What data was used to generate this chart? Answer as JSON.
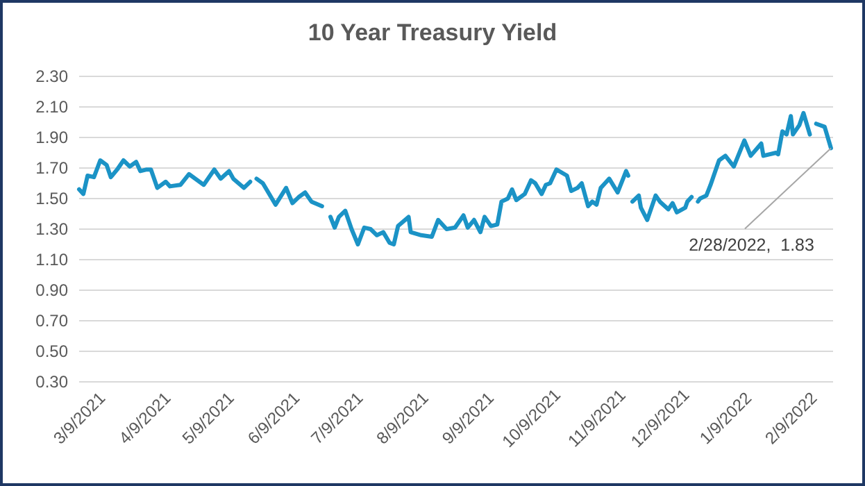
{
  "chart_data": {
    "type": "line",
    "title": "10 Year Treasury Yield",
    "x": [
      "2021-03-09",
      "2021-03-11",
      "2021-03-13",
      "2021-03-16",
      "2021-03-19",
      "2021-03-22",
      "2021-03-24",
      "2021-03-27",
      "2021-03-30",
      "2021-04-02",
      "2021-04-05",
      "2021-04-07",
      "2021-04-10",
      "2021-04-12",
      "2021-04-15",
      "2021-04-19",
      "2021-04-21",
      "2021-04-26",
      "2021-04-30",
      "2021-05-07",
      "2021-05-12",
      "2021-05-15",
      "2021-05-19",
      "2021-05-21",
      "2021-05-26",
      "2021-05-29",
      "2021-05-31",
      "2021-06-01",
      "2021-06-04",
      "2021-06-10",
      "2021-06-15",
      "2021-06-18",
      "2021-06-21",
      "2021-06-24",
      "2021-06-27",
      "2021-07-02",
      "2021-07-04",
      "2021-07-06",
      "2021-07-08",
      "2021-07-10",
      "2021-07-13",
      "2021-07-16",
      "2021-07-19",
      "2021-07-22",
      "2021-07-25",
      "2021-07-28",
      "2021-07-31",
      "2021-08-03",
      "2021-08-05",
      "2021-08-07",
      "2021-08-12",
      "2021-08-13",
      "2021-08-18",
      "2021-08-23",
      "2021-08-26",
      "2021-08-30",
      "2021-09-03",
      "2021-09-07",
      "2021-09-09",
      "2021-09-12",
      "2021-09-15",
      "2021-09-17",
      "2021-09-20",
      "2021-09-23",
      "2021-09-25",
      "2021-09-28",
      "2021-09-30",
      "2021-10-02",
      "2021-10-06",
      "2021-10-09",
      "2021-10-11",
      "2021-10-14",
      "2021-10-16",
      "2021-10-18",
      "2021-10-21",
      "2021-10-26",
      "2021-10-28",
      "2021-10-31",
      "2021-11-02",
      "2021-11-05",
      "2021-11-07",
      "2021-11-09",
      "2021-11-11",
      "2021-11-13",
      "2021-11-15",
      "2021-11-19",
      "2021-11-23",
      "2021-11-24",
      "2021-11-25",
      "2021-11-26",
      "2021-11-29",
      "2021-11-30",
      "2021-12-03",
      "2021-12-07",
      "2021-12-09",
      "2021-12-13",
      "2021-12-15",
      "2021-12-17",
      "2021-12-21",
      "2021-12-22",
      "2021-12-24",
      "2021-12-26",
      "2021-12-27",
      "2021-12-28",
      "2021-12-31",
      "2022-01-02",
      "2022-01-06",
      "2022-01-09",
      "2022-01-13",
      "2022-01-18",
      "2022-01-21",
      "2022-01-26",
      "2022-01-27",
      "2022-02-02",
      "2022-02-03",
      "2022-02-05",
      "2022-02-07",
      "2022-02-09",
      "2022-02-10",
      "2022-02-13",
      "2022-02-15",
      "2022-02-18",
      "2022-02-19",
      "2022-02-21",
      "2022-02-25",
      "2022-02-28"
    ],
    "series": [
      {
        "color": "#1b93c6",
        "values": [
          1.56,
          1.53,
          1.65,
          1.64,
          1.75,
          1.72,
          1.64,
          1.69,
          1.75,
          1.71,
          1.74,
          1.68,
          1.69,
          1.69,
          1.57,
          1.61,
          1.58,
          1.59,
          1.66,
          1.59,
          1.69,
          1.63,
          1.68,
          1.63,
          1.57,
          1.61,
          null,
          1.63,
          1.6,
          1.46,
          1.57,
          1.47,
          1.51,
          1.54,
          1.48,
          1.45,
          null,
          1.38,
          1.31,
          1.38,
          1.42,
          1.3,
          1.2,
          1.31,
          1.3,
          1.26,
          1.28,
          1.21,
          1.2,
          1.32,
          1.38,
          1.28,
          1.26,
          1.25,
          1.36,
          1.3,
          1.31,
          1.39,
          1.31,
          1.36,
          1.28,
          1.38,
          1.32,
          1.33,
          1.48,
          1.5,
          1.56,
          1.49,
          1.53,
          1.62,
          1.6,
          1.53,
          1.59,
          1.6,
          1.69,
          1.65,
          1.55,
          1.57,
          1.6,
          1.45,
          1.48,
          1.46,
          1.57,
          1.6,
          1.63,
          1.54,
          1.68,
          1.65,
          null,
          1.48,
          1.52,
          1.44,
          1.36,
          1.52,
          1.48,
          1.43,
          1.47,
          1.41,
          1.44,
          1.48,
          1.51,
          null,
          1.48,
          1.5,
          1.52,
          1.59,
          1.75,
          1.78,
          1.71,
          1.88,
          1.78,
          1.86,
          1.78,
          1.8,
          1.79,
          1.94,
          1.92,
          2.04,
          1.92,
          1.98,
          2.06,
          1.92,
          null,
          1.99,
          1.97,
          1.83
        ]
      }
    ],
    "xlim": [
      "2021-03-09",
      "2022-03-01"
    ],
    "xticks": [
      {
        "value": "2021-03-09",
        "label": "3/9/2021"
      },
      {
        "value": "2021-04-09",
        "label": "4/9/2021"
      },
      {
        "value": "2021-05-09",
        "label": "5/9/2021"
      },
      {
        "value": "2021-06-09",
        "label": "6/9/2021"
      },
      {
        "value": "2021-07-09",
        "label": "7/9/2021"
      },
      {
        "value": "2021-08-09",
        "label": "8/9/2021"
      },
      {
        "value": "2021-09-09",
        "label": "9/9/2021"
      },
      {
        "value": "2021-10-09",
        "label": "10/9/2021"
      },
      {
        "value": "2021-11-09",
        "label": "11/9/2021"
      },
      {
        "value": "2021-12-09",
        "label": "12/9/2021"
      },
      {
        "value": "2022-01-09",
        "label": "1/9/2022"
      },
      {
        "value": "2022-02-09",
        "label": "2/9/2022"
      }
    ],
    "ylim": [
      0.3,
      2.3
    ],
    "yticks": [
      {
        "value": 0.3,
        "label": "0.30"
      },
      {
        "value": 0.5,
        "label": "0.50"
      },
      {
        "value": 0.7,
        "label": "0.70"
      },
      {
        "value": 0.9,
        "label": "0.90"
      },
      {
        "value": 1.1,
        "label": "1.10"
      },
      {
        "value": 1.3,
        "label": "1.30"
      },
      {
        "value": 1.5,
        "label": "1.50"
      },
      {
        "value": 1.7,
        "label": "1.70"
      },
      {
        "value": 1.9,
        "label": "1.90"
      },
      {
        "value": 2.1,
        "label": "2.10"
      },
      {
        "value": 2.3,
        "label": "2.30"
      }
    ],
    "grid": "y",
    "annotations": [
      {
        "text": "2/28/2022,  1.83",
        "x": "2022-02-28",
        "y": 1.83
      }
    ]
  }
}
